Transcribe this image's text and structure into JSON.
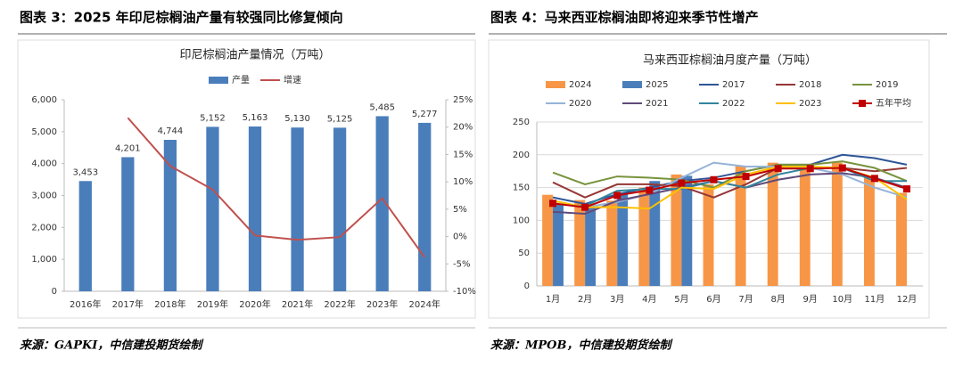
{
  "chart_data": [
    {
      "type": "bar",
      "caption": "图表 3：2025 年印尼棕榈油产量有较强同比修复倾向",
      "title": "印尼棕榈油产量情况（万吨）",
      "source": "来源：GAPKI，中信建投期货绘制",
      "categories": [
        "2016年",
        "2017年",
        "2018年",
        "2019年",
        "2020年",
        "2021年",
        "2022年",
        "2023年",
        "2024年"
      ],
      "series": [
        {
          "name": "产量",
          "type": "bar",
          "color": "#4a7ebb",
          "values": [
            3453,
            4201,
            4744,
            5152,
            5163,
            5130,
            5125,
            5485,
            5277
          ],
          "value_labels": [
            "3,453",
            "4,201",
            "4,744",
            "5,152",
            "5,163",
            "5,130",
            "5,125",
            "5,485",
            "5,277"
          ]
        },
        {
          "name": "增速",
          "type": "line",
          "axis": "y2",
          "color": "#c0504d",
          "values": [
            null,
            21.7,
            12.9,
            8.6,
            0.2,
            -0.6,
            -0.1,
            7.0,
            -3.8
          ]
        }
      ],
      "ylim": [
        0,
        6000
      ],
      "yticks": [
        0,
        {
          "value": 1000,
          "label": "1,000"
        },
        {
          "value": 2000,
          "label": "2,000"
        },
        {
          "value": 3000,
          "label": "3,000"
        },
        {
          "value": 4000,
          "label": "4,000"
        },
        {
          "value": 5000,
          "label": "5,000"
        },
        {
          "value": 6000,
          "label": "6,000"
        }
      ],
      "y2lim": [
        -10,
        25
      ],
      "y2ticks": [
        {
          "value": -10,
          "label": "-10%"
        },
        {
          "value": -5,
          "label": "-5%"
        },
        {
          "value": 0,
          "label": "0%"
        },
        {
          "value": 5,
          "label": "5%"
        },
        {
          "value": 10,
          "label": "10%"
        },
        {
          "value": 15,
          "label": "15%"
        },
        {
          "value": 20,
          "label": "20%"
        },
        {
          "value": 25,
          "label": "25%"
        }
      ],
      "grid": false
    },
    {
      "type": "bar",
      "caption": "图表 4：马来西亚棕榈油即将迎来季节性增产",
      "title": "马来西亚棕榈油月度产量（万吨）",
      "source": "来源：MPOB，中信建投期货绘制",
      "categories": [
        "1月",
        "2月",
        "3月",
        "4月",
        "5月",
        "6月",
        "7月",
        "8月",
        "9月",
        "10月",
        "11月",
        "12月"
      ],
      "series": [
        {
          "name": "2024",
          "type": "bar",
          "color": "#f79646",
          "values": [
            139,
            131,
            130,
            150,
            170,
            155,
            183,
            188,
            183,
            188,
            165,
            142
          ]
        },
        {
          "name": "2025",
          "type": "bar",
          "color": "#4a7ebb",
          "values": [
            125,
            120,
            140,
            160,
            168,
            null,
            null,
            null,
            null,
            null,
            null,
            null
          ]
        },
        {
          "name": "2017",
          "type": "line",
          "color": "#2e5597",
          "values": [
            135,
            125,
            140,
            150,
            160,
            165,
            175,
            185,
            185,
            200,
            195,
            185
          ]
        },
        {
          "name": "2018",
          "type": "line",
          "color": "#953735",
          "values": [
            158,
            135,
            155,
            155,
            152,
            135,
            155,
            180,
            180,
            180,
            175,
            180
          ]
        },
        {
          "name": "2019",
          "type": "line",
          "color": "#77933c",
          "values": [
            173,
            155,
            167,
            165,
            162,
            150,
            175,
            185,
            185,
            190,
            180,
            160
          ]
        },
        {
          "name": "2020",
          "type": "line",
          "color": "#95b3d7",
          "values": [
            130,
            120,
            128,
            140,
            165,
            188,
            182,
            182,
            180,
            170,
            150,
            135
          ]
        },
        {
          "name": "2021",
          "type": "line",
          "color": "#604a7b",
          "values": [
            113,
            110,
            130,
            140,
            150,
            160,
            150,
            162,
            170,
            172,
            165,
            150
          ]
        },
        {
          "name": "2022",
          "type": "line",
          "color": "#31859c",
          "values": [
            125,
            122,
            145,
            148,
            148,
            160,
            150,
            170,
            180,
            180,
            160,
            160
          ]
        },
        {
          "name": "2023",
          "type": "line",
          "color": "#ffc000",
          "values": [
            130,
            120,
            120,
            118,
            150,
            148,
            170,
            182,
            182,
            180,
            165,
            132
          ]
        },
        {
          "name": "五年平均",
          "type": "line",
          "color": "#c00000",
          "marker": "square",
          "values": [
            126,
            120,
            138,
            146,
            157,
            162,
            167,
            179,
            179,
            180,
            164,
            148
          ]
        }
      ],
      "ylim": [
        0,
        250
      ],
      "yticks": [
        0,
        50,
        100,
        150,
        200,
        250
      ],
      "grid": true
    }
  ]
}
